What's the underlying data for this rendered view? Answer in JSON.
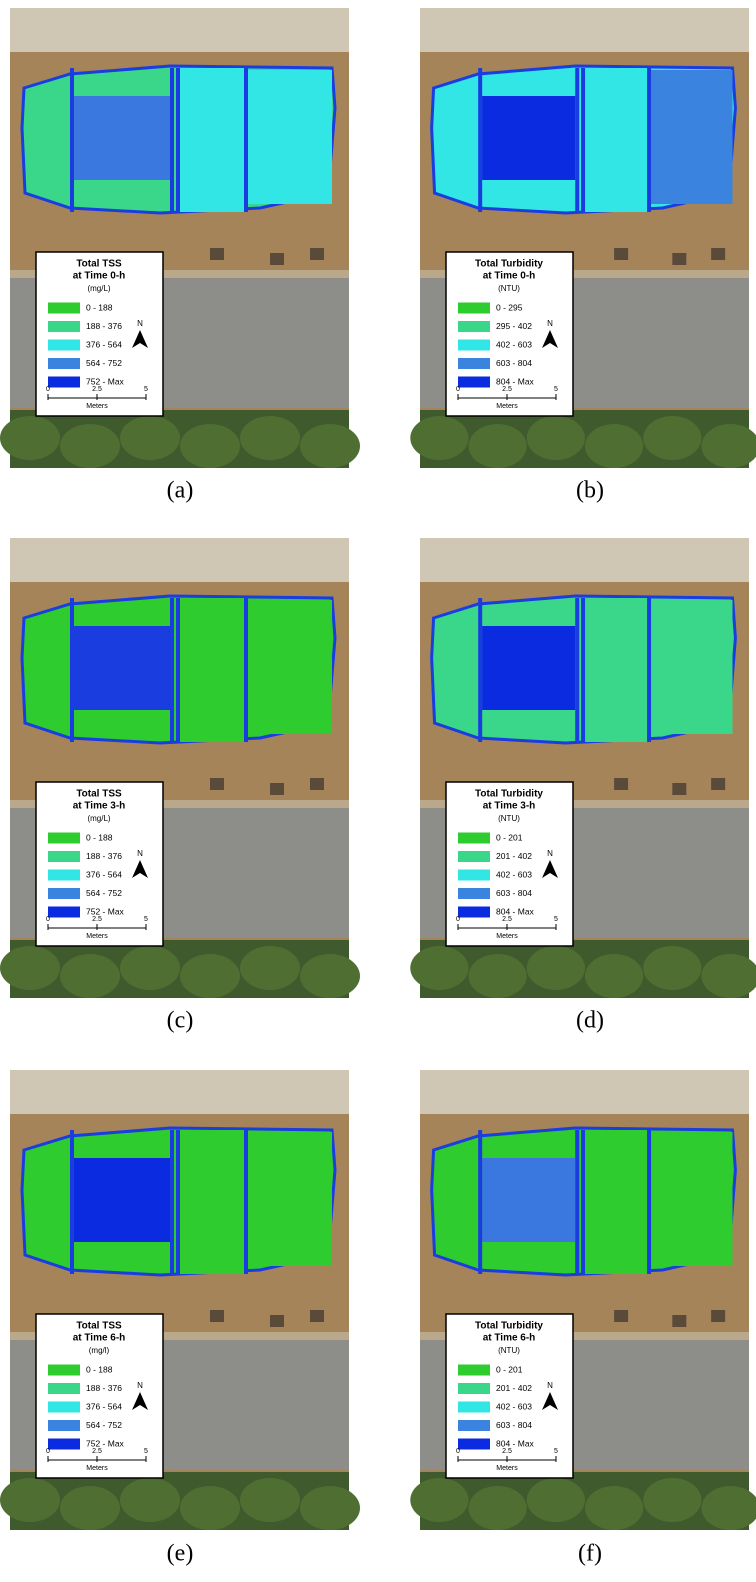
{
  "panels": [
    {
      "label": "(a)",
      "zone_colors": [
        "#3ad68a",
        "#3a78e0",
        "#33e6e6",
        "#33e6e6"
      ],
      "legend": {
        "title": [
          "Total TSS",
          "at Time 0-h"
        ],
        "unit": "(mg/L)",
        "items": [
          {
            "label": "0 - 188",
            "color": "#2ecc2e"
          },
          {
            "label": "188 - 376",
            "color": "#3ad68a"
          },
          {
            "label": "376 - 564",
            "color": "#33e6e6"
          },
          {
            "label": "564 - 752",
            "color": "#3a84e0"
          },
          {
            "label": "752 - Max",
            "color": "#0a2be0"
          }
        ],
        "north": "N",
        "scale": {
          "ticks": [
            0,
            2.5,
            5
          ],
          "unit": "Meters"
        }
      }
    },
    {
      "label": "(b)",
      "zone_colors": [
        "#33e6e6",
        "#0a2be0",
        "#33e6e6",
        "#3a84e0"
      ],
      "legend": {
        "title": [
          "Total Turbidity",
          "at Time 0-h"
        ],
        "unit": "(NTU)",
        "items": [
          {
            "label": "0 - 295",
            "color": "#2ecc2e"
          },
          {
            "label": "295 - 402",
            "color": "#3ad68a"
          },
          {
            "label": "402 - 603",
            "color": "#33e6e6"
          },
          {
            "label": "603 - 804",
            "color": "#3a84e0"
          },
          {
            "label": "804 - Max",
            "color": "#0a2be0"
          }
        ],
        "north": "N",
        "scale": {
          "ticks": [
            0,
            2.5,
            5
          ],
          "unit": "Meters"
        }
      }
    },
    {
      "label": "(c)",
      "zone_colors": [
        "#2ecc2e",
        "#1a3de0",
        "#2ecc2e",
        "#2ecc2e"
      ],
      "legend": {
        "title": [
          "Total TSS",
          "at Time 3-h"
        ],
        "unit": "(mg/L)",
        "items": [
          {
            "label": "0 - 188",
            "color": "#2ecc2e"
          },
          {
            "label": "188 - 376",
            "color": "#3ad68a"
          },
          {
            "label": "376 - 564",
            "color": "#33e6e6"
          },
          {
            "label": "564 - 752",
            "color": "#3a84e0"
          },
          {
            "label": "752 - Max",
            "color": "#0a2be0"
          }
        ],
        "north": "N",
        "scale": {
          "ticks": [
            0,
            2.5,
            5
          ],
          "unit": "Meters"
        }
      }
    },
    {
      "label": "(d)",
      "zone_colors": [
        "#3ad68a",
        "#0a2be0",
        "#3ad68a",
        "#3ad68a"
      ],
      "legend": {
        "title": [
          "Total Turbidity",
          "at Time 3-h"
        ],
        "unit": "(NTU)",
        "items": [
          {
            "label": "0 - 201",
            "color": "#2ecc2e"
          },
          {
            "label": "201 - 402",
            "color": "#3ad68a"
          },
          {
            "label": "402 - 603",
            "color": "#33e6e6"
          },
          {
            "label": "603 - 804",
            "color": "#3a84e0"
          },
          {
            "label": "804 - Max",
            "color": "#0a2be0"
          }
        ],
        "north": "N",
        "scale": {
          "ticks": [
            0,
            2.5,
            5
          ],
          "unit": "Meters"
        }
      }
    },
    {
      "label": "(e)",
      "zone_colors": [
        "#2ecc2e",
        "#0a2be0",
        "#2ecc2e",
        "#2ecc2e"
      ],
      "legend": {
        "title": [
          "Total TSS",
          "at Time 6-h"
        ],
        "unit": "(mg/l)",
        "items": [
          {
            "label": "0 - 188",
            "color": "#2ecc2e"
          },
          {
            "label": "188 - 376",
            "color": "#3ad68a"
          },
          {
            "label": "376 - 564",
            "color": "#33e6e6"
          },
          {
            "label": "564 - 752",
            "color": "#3a84e0"
          },
          {
            "label": "752 - Max",
            "color": "#0a2be0"
          }
        ],
        "north": "N",
        "scale": {
          "ticks": [
            0,
            2.5,
            5
          ],
          "unit": "Meters"
        }
      }
    },
    {
      "label": "(f)",
      "zone_colors": [
        "#2ecc2e",
        "#3a78e0",
        "#2ecc2e",
        "#2ecc2e"
      ],
      "legend": {
        "title": [
          "Total Turbidity",
          "at Time 6-h"
        ],
        "unit": "(NTU)",
        "items": [
          {
            "label": "0 - 201",
            "color": "#2ecc2e"
          },
          {
            "label": "201 - 402",
            "color": "#3ad68a"
          },
          {
            "label": "402 - 603",
            "color": "#33e6e6"
          },
          {
            "label": "603 - 804",
            "color": "#3a84e0"
          },
          {
            "label": "804 - Max",
            "color": "#0a2be0"
          }
        ],
        "north": "N",
        "scale": {
          "ticks": [
            0,
            2.5,
            5
          ],
          "unit": "Meters"
        }
      }
    }
  ]
}
